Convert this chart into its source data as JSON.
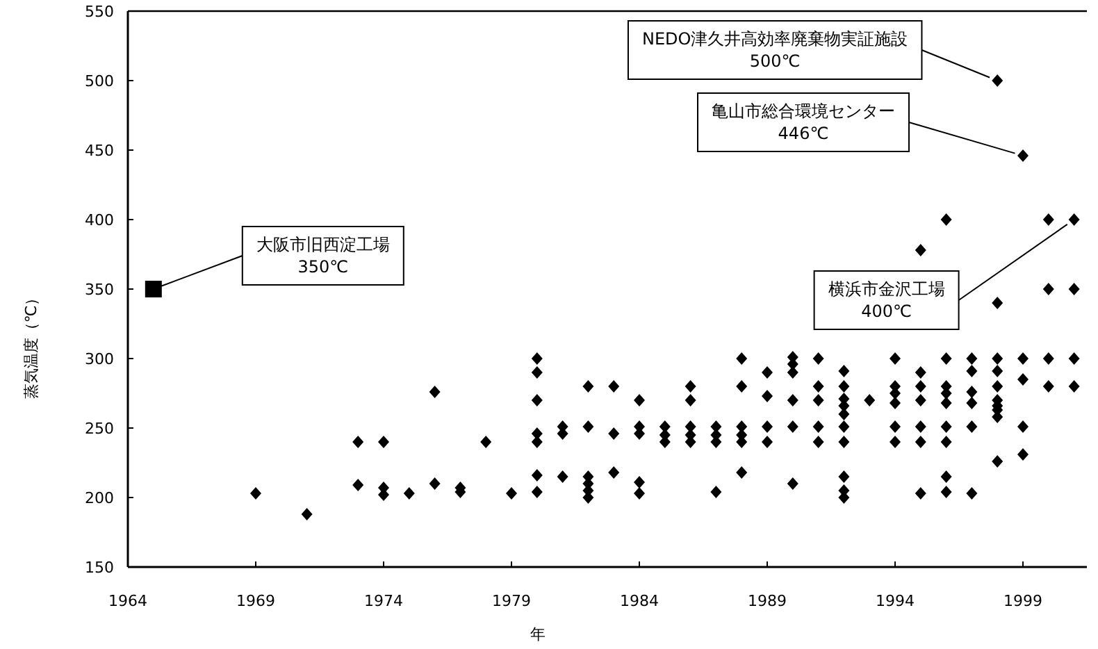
{
  "chart_data": {
    "type": "scatter",
    "xlabel": "年",
    "ylabel": "蒸気温度（℃）",
    "xlim": [
      1964,
      2001.5
    ],
    "ylim": [
      150,
      550
    ],
    "xticks": [
      1964,
      1969,
      1974,
      1979,
      1984,
      1989,
      1994,
      1999
    ],
    "yticks": [
      150,
      200,
      250,
      300,
      350,
      400,
      450,
      500,
      550
    ],
    "series": [
      {
        "color": "#000000",
        "marker": "diamond",
        "x": [
          1969,
          1971,
          1973,
          1973,
          1974,
          1974,
          1974,
          1975,
          1976,
          1976,
          1977,
          1977,
          1978,
          1979,
          1980,
          1980,
          1980,
          1980,
          1980,
          1980,
          1980,
          1981,
          1981,
          1981,
          1982,
          1982,
          1982,
          1982,
          1982,
          1982,
          1983,
          1983,
          1983,
          1984,
          1984,
          1984,
          1984,
          1984,
          1985,
          1985,
          1985,
          1986,
          1986,
          1986,
          1986,
          1986,
          1987,
          1987,
          1987,
          1987,
          1988,
          1988,
          1988,
          1988,
          1988,
          1988,
          1989,
          1989,
          1989,
          1989,
          1990,
          1990,
          1990,
          1990,
          1990,
          1990,
          1991,
          1991,
          1991,
          1991,
          1991,
          1992,
          1992,
          1992,
          1992,
          1992,
          1992,
          1992,
          1992,
          1992,
          1992,
          1993,
          1994,
          1994,
          1994,
          1994,
          1994,
          1994,
          1995,
          1995,
          1995,
          1995,
          1995,
          1995,
          1995,
          1996,
          1996,
          1996,
          1996,
          1996,
          1996,
          1996,
          1996,
          1996,
          1997,
          1997,
          1997,
          1997,
          1997,
          1997,
          1998,
          1998,
          1998,
          1998,
          1998,
          1998,
          1998,
          1998,
          1998,
          1998,
          1999,
          1999,
          1999,
          1999,
          1999,
          2000,
          2000,
          2000,
          2000,
          2001,
          2001,
          2001,
          2001
        ],
        "values": [
          203,
          188,
          240,
          209,
          240,
          207,
          202,
          203,
          276,
          210,
          207,
          204,
          240,
          203,
          300,
          290,
          270,
          246,
          240,
          216,
          204,
          251,
          246,
          215,
          280,
          251,
          215,
          210,
          205,
          200,
          280,
          246,
          218,
          270,
          251,
          246,
          211,
          203,
          251,
          245,
          240,
          280,
          270,
          251,
          245,
          240,
          251,
          245,
          240,
          204,
          300,
          280,
          251,
          245,
          240,
          218,
          290,
          273,
          251,
          240,
          301,
          296,
          290,
          270,
          251,
          210,
          300,
          280,
          270,
          251,
          240,
          291,
          280,
          271,
          266,
          260,
          251,
          240,
          215,
          205,
          200,
          270,
          300,
          280,
          275,
          268,
          251,
          240,
          378,
          290,
          280,
          270,
          251,
          240,
          203,
          400,
          300,
          280,
          275,
          268,
          251,
          240,
          215,
          204,
          300,
          291,
          276,
          268,
          251,
          203,
          500,
          340,
          300,
          291,
          280,
          270,
          266,
          263,
          258,
          226,
          446,
          300,
          285,
          251,
          231,
          400,
          350,
          300,
          280,
          400,
          350,
          300,
          280
        ]
      },
      {
        "color": "#000000",
        "marker": "square",
        "x": [
          1965
        ],
        "values": [
          350
        ]
      }
    ],
    "annotations": [
      {
        "text": "大阪市旧西淀工場\n350℃",
        "x": 1965,
        "y": 350
      },
      {
        "text": "NEDO津久井高効率廃棄物実証施設\n500℃",
        "x": 1998,
        "y": 500
      },
      {
        "text": "亀山市総合環境センター\n446℃",
        "x": 1999,
        "y": 446
      },
      {
        "text": "横浜市金沢工場\n400℃",
        "x": 2001,
        "y": 400
      }
    ]
  }
}
